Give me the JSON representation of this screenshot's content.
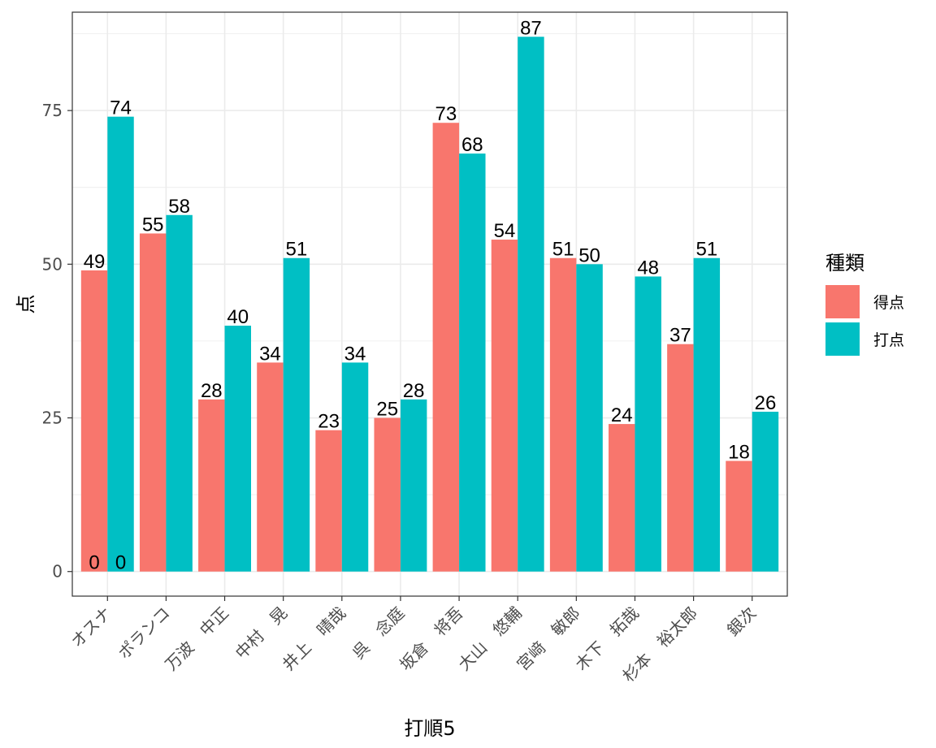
{
  "chart_data": {
    "type": "bar",
    "xlabel": "打順5",
    "ylabel": "点",
    "legend_title": "種類",
    "legend_position": "right",
    "grid": true,
    "ylim": [
      -4,
      91
    ],
    "yticks": [
      0,
      25,
      50,
      75
    ],
    "categories": [
      "オスナ",
      "ポランコ",
      "万波　中正",
      "中村　晃",
      "井上　晴哉",
      "呉　念庭",
      "坂倉　将吾",
      "大山　悠輔",
      "宮﨑　敏郎",
      "木下　拓哉",
      "杉本　裕太郎",
      "銀次"
    ],
    "series": [
      {
        "name": "得点",
        "color": "#F8766D",
        "values": [
          49,
          55,
          28,
          34,
          23,
          25,
          73,
          54,
          51,
          24,
          37,
          18
        ]
      },
      {
        "name": "打点",
        "color": "#00BFC4",
        "values": [
          74,
          58,
          40,
          51,
          34,
          28,
          68,
          87,
          50,
          48,
          51,
          26
        ]
      }
    ],
    "annotations": [
      {
        "category": "オスナ",
        "series": "得点",
        "text": "0",
        "y": 0
      },
      {
        "category": "オスナ",
        "series": "打点",
        "text": "0",
        "y": 0
      }
    ]
  }
}
